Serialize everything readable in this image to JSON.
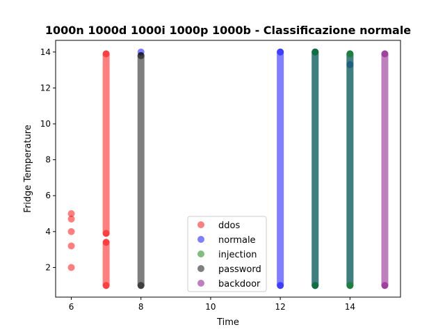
{
  "chart_data": {
    "type": "scatter",
    "title": "1000n 1000d 1000i 1000p 1000b - Classificazione normale",
    "xlabel": "Time",
    "ylabel": "Fridge Temperature",
    "xlim": [
      5.55,
      15.45
    ],
    "ylim": [
      0.35,
      14.65
    ],
    "xticks": [
      6,
      8,
      10,
      12,
      14
    ],
    "yticks": [
      2,
      4,
      6,
      8,
      10,
      12,
      14
    ],
    "grid": false,
    "legend_position": "lower-center",
    "series": [
      {
        "name": "ddos",
        "color": "#ff0000",
        "points": [
          {
            "x": 6,
            "y": 2.0
          },
          {
            "x": 6,
            "y": 3.2
          },
          {
            "x": 6,
            "y": 4.0
          },
          {
            "x": 6,
            "y": 4.7
          },
          {
            "x": 6,
            "y": 5.0
          },
          {
            "x": 7,
            "y": 1.0
          },
          {
            "x": 7,
            "y": 3.4
          },
          {
            "x": 7,
            "y": 3.9
          },
          {
            "x": 7,
            "y": 13.9
          }
        ],
        "dense_columns": [
          {
            "x": 7,
            "ranges": [
              [
                1.0,
                3.4
              ],
              [
                3.9,
                13.9
              ]
            ]
          }
        ]
      },
      {
        "name": "normale",
        "color": "#0000ff",
        "points": [
          {
            "x": 8,
            "y": 14.0
          },
          {
            "x": 12,
            "y": 1.0
          },
          {
            "x": 12,
            "y": 14.0
          },
          {
            "x": 13,
            "y": 1.0
          },
          {
            "x": 13,
            "y": 14.0
          },
          {
            "x": 14,
            "y": 13.3
          }
        ],
        "dense_columns": [
          {
            "x": 12,
            "ranges": [
              [
                1.0,
                14.0
              ]
            ]
          },
          {
            "x": 13,
            "ranges": [
              [
                1.0,
                14.0
              ]
            ]
          },
          {
            "x": 14,
            "ranges": [
              [
                1.0,
                13.9
              ]
            ]
          }
        ]
      },
      {
        "name": "injection",
        "color": "#008000",
        "points": [
          {
            "x": 13,
            "y": 1.0
          },
          {
            "x": 13,
            "y": 14.0
          },
          {
            "x": 14,
            "y": 1.0
          },
          {
            "x": 14,
            "y": 13.9
          }
        ],
        "dense_columns": [
          {
            "x": 13,
            "ranges": [
              [
                1.0,
                14.0
              ]
            ]
          },
          {
            "x": 14,
            "ranges": [
              [
                1.0,
                13.9
              ]
            ]
          }
        ]
      },
      {
        "name": "password",
        "color": "#000000",
        "points": [
          {
            "x": 8,
            "y": 1.0
          },
          {
            "x": 8,
            "y": 13.8
          }
        ],
        "dense_columns": [
          {
            "x": 8,
            "ranges": [
              [
                1.0,
                13.8
              ]
            ]
          }
        ]
      },
      {
        "name": "backdoor",
        "color": "#800080",
        "points": [
          {
            "x": 15,
            "y": 1.0
          },
          {
            "x": 15,
            "y": 13.9
          }
        ],
        "dense_columns": [
          {
            "x": 15,
            "ranges": [
              [
                1.0,
                13.9
              ]
            ]
          }
        ]
      }
    ]
  }
}
